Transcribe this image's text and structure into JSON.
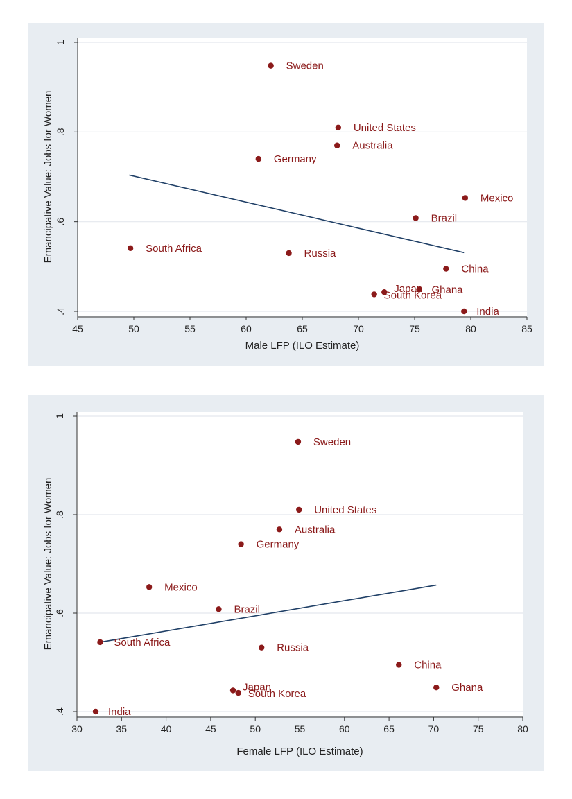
{
  "chart_data": [
    {
      "type": "scatter",
      "title": "",
      "xlabel": "Male LFP (ILO Estimate)",
      "ylabel": "Emancipative Value: Jobs for Women",
      "xlim": [
        45,
        85
      ],
      "ylim": [
        0.4,
        1.0
      ],
      "xticks": [
        "45",
        "50",
        "55",
        "60",
        "65",
        "70",
        "75",
        "80",
        "85"
      ],
      "yticks": [
        ".4",
        ".6",
        ".8",
        "1"
      ],
      "grid": true,
      "colors": {
        "points": "#8b1a1a",
        "labels": "#8b1a1a",
        "fit_line": "#1f3f66",
        "grid": "#ffffff",
        "panel": "#e8edf2"
      },
      "points": [
        {
          "label": "Sweden",
          "x": 62.2,
          "y": 0.948
        },
        {
          "label": "United States",
          "x": 68.2,
          "y": 0.81
        },
        {
          "label": "Australia",
          "x": 68.1,
          "y": 0.77
        },
        {
          "label": "Germany",
          "x": 61.1,
          "y": 0.74
        },
        {
          "label": "Mexico",
          "x": 79.5,
          "y": 0.653
        },
        {
          "label": "Brazil",
          "x": 75.1,
          "y": 0.608
        },
        {
          "label": "South Africa",
          "x": 49.7,
          "y": 0.541
        },
        {
          "label": "Russia",
          "x": 63.8,
          "y": 0.53
        },
        {
          "label": "China",
          "x": 77.8,
          "y": 0.495
        },
        {
          "label": "Ghana",
          "x": 75.4,
          "y": 0.449
        },
        {
          "label": "Japan",
          "x": 72.3,
          "y": 0.443
        },
        {
          "label": "South Korea",
          "x": 71.4,
          "y": 0.438
        },
        {
          "label": "India",
          "x": 79.4,
          "y": 0.4
        }
      ],
      "fit_line": {
        "x": [
          49.6,
          79.4
        ],
        "y": [
          0.704,
          0.531
        ]
      }
    },
    {
      "type": "scatter",
      "title": "",
      "xlabel": "Female LFP (ILO Estimate)",
      "ylabel": "Emancipative Value: Jobs for Women",
      "xlim": [
        30,
        80
      ],
      "ylim": [
        0.4,
        1.0
      ],
      "xticks": [
        "30",
        "35",
        "40",
        "45",
        "50",
        "55",
        "60",
        "65",
        "70",
        "75",
        "80"
      ],
      "yticks": [
        ".4",
        ".6",
        ".8",
        "1"
      ],
      "grid": true,
      "colors": {
        "points": "#8b1a1a",
        "labels": "#8b1a1a",
        "fit_line": "#1f3f66",
        "grid": "#ffffff",
        "panel": "#e8edf2"
      },
      "points": [
        {
          "label": "Sweden",
          "x": 54.8,
          "y": 0.948
        },
        {
          "label": "United States",
          "x": 54.9,
          "y": 0.81
        },
        {
          "label": "Australia",
          "x": 52.7,
          "y": 0.77
        },
        {
          "label": "Germany",
          "x": 48.4,
          "y": 0.74
        },
        {
          "label": "Mexico",
          "x": 38.1,
          "y": 0.653
        },
        {
          "label": "Brazil",
          "x": 45.9,
          "y": 0.608
        },
        {
          "label": "South Africa",
          "x": 32.6,
          "y": 0.541
        },
        {
          "label": "Russia",
          "x": 50.7,
          "y": 0.53
        },
        {
          "label": "China",
          "x": 66.1,
          "y": 0.495
        },
        {
          "label": "Ghana",
          "x": 70.3,
          "y": 0.449
        },
        {
          "label": "Japan",
          "x": 47.5,
          "y": 0.443
        },
        {
          "label": "South Korea",
          "x": 48.1,
          "y": 0.438
        },
        {
          "label": "India",
          "x": 32.1,
          "y": 0.4
        }
      ],
      "fit_line": {
        "x": [
          32.3,
          70.3
        ],
        "y": [
          0.54,
          0.657
        ]
      }
    }
  ]
}
